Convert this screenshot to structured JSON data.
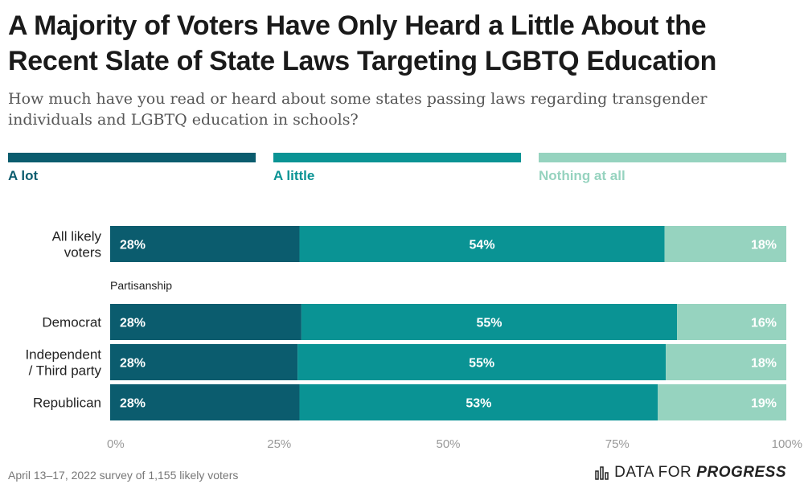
{
  "title": "A Majority of Voters Have Only Heard a Little About the Recent Slate of State Laws Targeting LGBTQ Education",
  "subtitle": "How much have you read or heard about some states passing laws regarding transgender individuals and LGBTQ education in schools?",
  "footer": "April 13–17, 2022 survey of 1,155 likely voters",
  "brand": {
    "part1": "DATA FOR",
    "part2": "PROGRESS",
    "icon": "bar-chart-icon"
  },
  "colors": {
    "a_lot": "#0b5c6e",
    "a_little": "#0a9394",
    "nothing": "#96d3bf"
  },
  "chart_data": {
    "type": "bar",
    "orientation": "horizontal",
    "stacked": true,
    "title": "A Majority of Voters Have Only Heard a Little About the Recent Slate of State Laws Targeting LGBTQ Education",
    "subtitle": "How much have you read or heard about some states passing laws regarding transgender individuals and LGBTQ education in schools?",
    "categories": [
      "All likely voters",
      "Democrat",
      "Independent / Third party",
      "Republican"
    ],
    "group_label": "Partisanship",
    "series": [
      {
        "name": "A lot",
        "values": [
          28,
          28,
          28,
          28
        ],
        "labels": [
          "28%",
          "28%",
          "28%",
          "28%"
        ]
      },
      {
        "name": "A little",
        "values": [
          54,
          55,
          55,
          53
        ],
        "labels": [
          "54%",
          "55%",
          "55%",
          "53%"
        ]
      },
      {
        "name": "Nothing at all",
        "values": [
          18,
          16,
          18,
          19
        ],
        "labels": [
          "18%",
          "16%",
          "18%",
          "19%"
        ]
      }
    ],
    "xlim": [
      0,
      100
    ],
    "ticks": [
      0,
      25,
      50,
      75,
      100
    ],
    "tick_labels": [
      "0%",
      "25%",
      "50%",
      "75%",
      "100%"
    ],
    "legend_position": "top",
    "grid": false
  }
}
